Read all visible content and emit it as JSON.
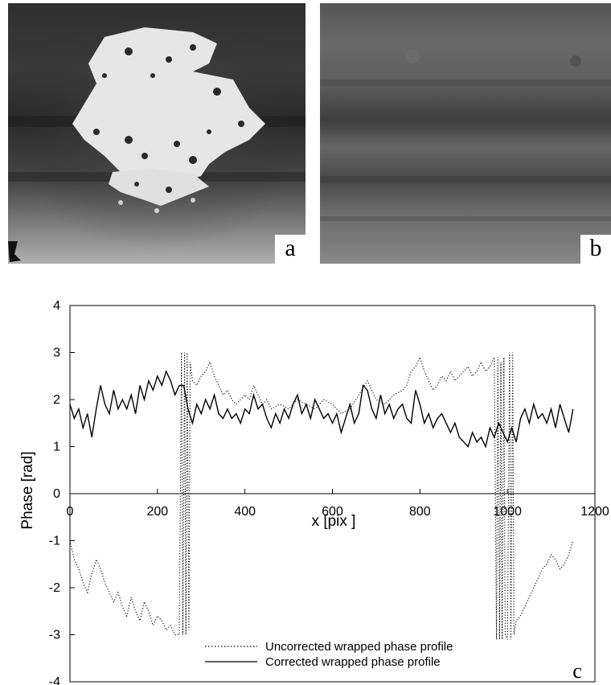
{
  "panels": [
    {
      "label": "a",
      "description": "phase map with bright saturated core"
    },
    {
      "label": "b",
      "description": "corrected phase map with horizontal fringes"
    }
  ],
  "chart_panel_label": "c",
  "chart_data": {
    "type": "line",
    "xlabel": "x [pix ]",
    "ylabel": "Phase [rad]",
    "xlim": [
      0,
      1200
    ],
    "ylim": [
      -4,
      4
    ],
    "xticks": [
      0,
      200,
      400,
      600,
      800,
      1000,
      1200
    ],
    "yticks": [
      -4,
      -3,
      -2,
      -1,
      0,
      1,
      2,
      3,
      4
    ],
    "grid": false,
    "legend_position": "bottom-center",
    "series": [
      {
        "name": "Uncorrected wrapped phase profile",
        "style": "dotted",
        "x": [
          0,
          10,
          20,
          30,
          40,
          50,
          60,
          70,
          80,
          90,
          100,
          110,
          120,
          130,
          140,
          150,
          160,
          170,
          180,
          190,
          200,
          210,
          220,
          230,
          240,
          250,
          255,
          258,
          262,
          265,
          268,
          272,
          275,
          280,
          290,
          300,
          310,
          320,
          330,
          340,
          350,
          360,
          370,
          380,
          390,
          400,
          410,
          420,
          430,
          440,
          450,
          460,
          480,
          500,
          520,
          540,
          560,
          580,
          600,
          620,
          640,
          660,
          680,
          700,
          720,
          740,
          760,
          770,
          780,
          790,
          800,
          810,
          820,
          830,
          840,
          850,
          860,
          870,
          880,
          890,
          900,
          910,
          920,
          930,
          940,
          950,
          960,
          970,
          975,
          978,
          982,
          985,
          988,
          992,
          995,
          1000,
          1005,
          1008,
          1012,
          1015,
          1020,
          1030,
          1040,
          1050,
          1060,
          1070,
          1080,
          1090,
          1100,
          1110,
          1120,
          1130,
          1140,
          1150
        ],
        "y": [
          -1.0,
          -1.4,
          -1.6,
          -1.9,
          -2.1,
          -1.7,
          -1.4,
          -1.6,
          -1.9,
          -2.1,
          -2.3,
          -2.1,
          -2.4,
          -2.6,
          -2.2,
          -2.5,
          -2.7,
          -2.3,
          -2.5,
          -2.8,
          -2.6,
          -2.7,
          -2.9,
          -2.8,
          -3.0,
          -3.0,
          3.0,
          -3.0,
          3.0,
          -3.0,
          3.0,
          -2.9,
          2.8,
          2.4,
          2.3,
          2.5,
          2.6,
          2.8,
          2.5,
          2.3,
          2.1,
          2.2,
          2.0,
          1.9,
          2.0,
          2.1,
          2.0,
          2.3,
          2.1,
          1.9,
          2.0,
          1.8,
          1.9,
          1.8,
          2.0,
          1.9,
          1.8,
          2.0,
          1.9,
          1.7,
          1.8,
          2.1,
          2.4,
          2.0,
          1.9,
          2.1,
          2.2,
          2.3,
          2.6,
          2.7,
          2.9,
          2.6,
          2.4,
          2.2,
          2.3,
          2.5,
          2.4,
          2.6,
          2.4,
          2.5,
          2.6,
          2.7,
          2.5,
          2.6,
          2.8,
          2.6,
          2.7,
          2.9,
          -3.1,
          2.9,
          -3.1,
          2.8,
          -3.1,
          2.9,
          -3.0,
          -3.1,
          3.0,
          -3.1,
          3.0,
          -3.0,
          -2.7,
          -2.6,
          -2.4,
          -2.2,
          -2.0,
          -1.8,
          -1.6,
          -1.5,
          -1.3,
          -1.4,
          -1.6,
          -1.5,
          -1.3,
          -1.0
        ]
      },
      {
        "name": "Corrected wrapped phase profile",
        "style": "solid",
        "x": [
          0,
          10,
          20,
          30,
          40,
          50,
          60,
          70,
          80,
          90,
          100,
          110,
          120,
          130,
          140,
          150,
          160,
          170,
          180,
          190,
          200,
          210,
          220,
          230,
          240,
          250,
          260,
          270,
          280,
          290,
          300,
          310,
          320,
          330,
          340,
          350,
          360,
          370,
          380,
          390,
          400,
          410,
          420,
          430,
          440,
          450,
          460,
          470,
          480,
          490,
          500,
          510,
          520,
          530,
          540,
          550,
          560,
          570,
          580,
          590,
          600,
          610,
          620,
          630,
          640,
          650,
          660,
          670,
          680,
          690,
          700,
          710,
          720,
          730,
          740,
          750,
          760,
          770,
          780,
          790,
          800,
          810,
          820,
          830,
          840,
          850,
          860,
          870,
          880,
          890,
          900,
          910,
          920,
          930,
          940,
          950,
          960,
          970,
          980,
          990,
          1000,
          1010,
          1020,
          1030,
          1040,
          1050,
          1060,
          1070,
          1080,
          1090,
          1100,
          1110,
          1120,
          1130,
          1140,
          1150
        ],
        "y": [
          1.9,
          1.6,
          1.8,
          1.4,
          1.7,
          1.2,
          1.8,
          2.3,
          1.9,
          1.7,
          2.2,
          1.8,
          2.0,
          1.8,
          2.1,
          1.7,
          2.3,
          2.0,
          2.4,
          2.2,
          2.5,
          2.3,
          2.6,
          2.4,
          2.1,
          2.3,
          2.3,
          1.8,
          1.5,
          1.9,
          1.7,
          2.0,
          1.8,
          2.1,
          1.7,
          1.6,
          1.8,
          1.6,
          1.7,
          1.5,
          1.8,
          1.7,
          2.1,
          1.8,
          1.9,
          1.6,
          1.4,
          1.7,
          1.5,
          1.8,
          1.6,
          1.9,
          2.1,
          1.7,
          1.9,
          1.6,
          2.0,
          1.8,
          1.6,
          1.7,
          1.5,
          1.7,
          1.3,
          1.6,
          1.9,
          1.5,
          1.7,
          2.3,
          2.2,
          1.8,
          1.6,
          2.1,
          1.7,
          1.9,
          1.6,
          1.8,
          1.9,
          1.6,
          1.5,
          2.2,
          1.9,
          1.5,
          1.7,
          1.4,
          1.6,
          1.7,
          1.5,
          1.3,
          1.5,
          1.2,
          1.1,
          1.0,
          1.3,
          1.1,
          1.2,
          1.0,
          1.4,
          1.2,
          1.5,
          1.3,
          1.1,
          1.4,
          1.1,
          1.6,
          1.8,
          1.5,
          1.9,
          1.6,
          1.7,
          1.5,
          1.8,
          1.4,
          1.9,
          1.6,
          1.3,
          1.8
        ]
      }
    ]
  }
}
